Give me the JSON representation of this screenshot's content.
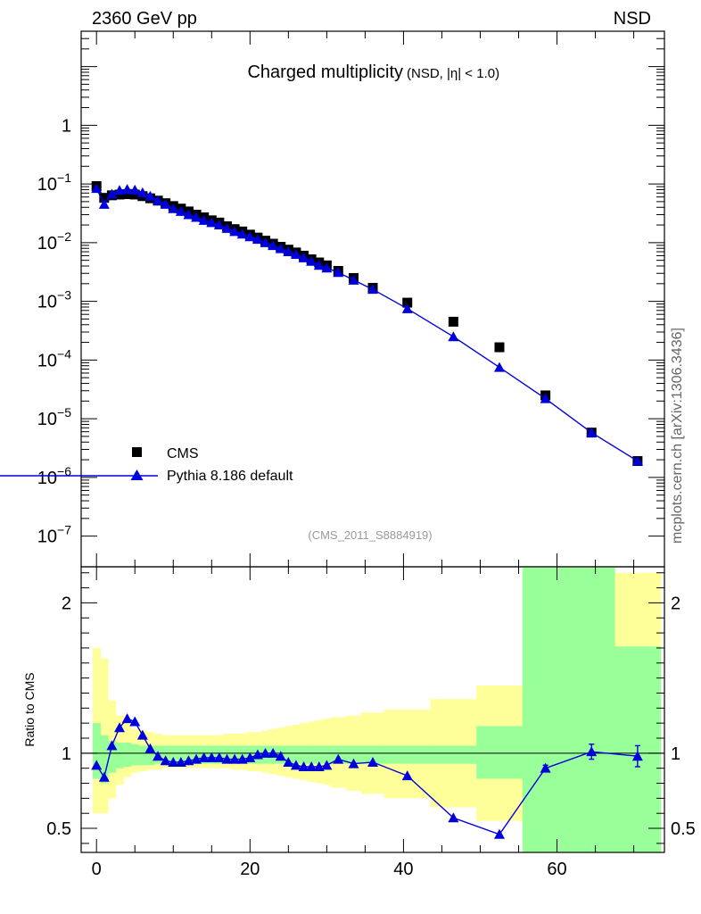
{
  "header": {
    "left": "2360 GeV pp",
    "right": "NSD"
  },
  "watermark": "mcplots.cern.ch [arXiv:1306.3436]",
  "chart_data": [
    {
      "type": "scatter",
      "panel": "main",
      "title": "Charged multiplicity",
      "subtitle": "(NSD, |η| < 1.0)",
      "annotation": "(CMS_2011_S8884919)",
      "xlabel": "",
      "ylabel": "",
      "yscale": "log",
      "xlim": [
        -2,
        74
      ],
      "ylim": [
        3e-08,
        40
      ],
      "y_ticks": [
        {
          "value": 1e-07,
          "base": "10",
          "exp": "−7"
        },
        {
          "value": 1e-06,
          "base": "10",
          "exp": "−6"
        },
        {
          "value": 1e-05,
          "base": "10",
          "exp": "−5"
        },
        {
          "value": 0.0001,
          "base": "10",
          "exp": "−4"
        },
        {
          "value": 0.001,
          "base": "10",
          "exp": "−3"
        },
        {
          "value": 0.01,
          "base": "10",
          "exp": "−2"
        },
        {
          "value": 0.1,
          "base": "10",
          "exp": "−1"
        },
        {
          "value": 1,
          "base": "1",
          "exp": ""
        }
      ],
      "legend_position": "bottom-left",
      "series": [
        {
          "name": "CMS",
          "marker": "square",
          "color": "#000000",
          "x": [
            0,
            1,
            2,
            3,
            4,
            5,
            6,
            7,
            8,
            9,
            10,
            11,
            12,
            13,
            14,
            15,
            16,
            17,
            18,
            19,
            20,
            21,
            22,
            23,
            24,
            25,
            26,
            27,
            28,
            29,
            30,
            31.5,
            33.5,
            36,
            40.5,
            46.5,
            52.5,
            58.5,
            64.5,
            70.5
          ],
          "y": [
            0.092,
            0.058,
            0.064,
            0.066,
            0.067,
            0.066,
            0.062,
            0.057,
            0.052,
            0.047,
            0.042,
            0.038,
            0.034,
            0.03,
            0.027,
            0.024,
            0.022,
            0.019,
            0.017,
            0.0155,
            0.0137,
            0.0122,
            0.0108,
            0.0096,
            0.0085,
            0.0076,
            0.0068,
            0.006,
            0.0052,
            0.0046,
            0.0041,
            0.0033,
            0.0025,
            0.0017,
            0.00095,
            0.00045,
            0.000165,
            2.5e-05,
            5.8e-06,
            1.9e-06
          ]
        },
        {
          "name": "Pythia 8.186 default",
          "marker": "triangle",
          "color": "#0000dd",
          "x": [
            0,
            1,
            2,
            3,
            4,
            5,
            6,
            7,
            8,
            9,
            10,
            11,
            12,
            13,
            14,
            15,
            16,
            17,
            18,
            19,
            20,
            21,
            22,
            23,
            24,
            25,
            26,
            27,
            28,
            29,
            30,
            31.5,
            33.5,
            36,
            40.5,
            46.5,
            52.5,
            58.5,
            64.5,
            70.5
          ],
          "y": [
            0.084,
            0.045,
            0.067,
            0.078,
            0.081,
            0.079,
            0.071,
            0.062,
            0.052,
            0.045,
            0.038,
            0.034,
            0.03,
            0.027,
            0.024,
            0.022,
            0.02,
            0.0175,
            0.0155,
            0.014,
            0.0126,
            0.0114,
            0.01,
            0.0089,
            0.0079,
            0.007,
            0.0063,
            0.0055,
            0.0048,
            0.0041,
            0.0037,
            0.0031,
            0.0023,
            0.0016,
            0.00075,
            0.00025,
            7.5e-05,
            2.2e-05,
            5.8e-06,
            1.9e-06
          ]
        }
      ]
    },
    {
      "type": "line",
      "panel": "ratio",
      "xlabel": "",
      "ylabel": "Ratio to CMS",
      "xlim": [
        -2,
        74
      ],
      "ylim": [
        0.34,
        2.24
      ],
      "x_ticks": [
        0,
        20,
        40,
        60
      ],
      "y_ticks": [
        0.5,
        1,
        2
      ],
      "reference_line": 1,
      "bands": {
        "bin_edges": [
          -0.5,
          0.5,
          1.5,
          2.5,
          3.5,
          4.5,
          5.5,
          6.5,
          7.5,
          8.5,
          9.5,
          10.5,
          11.5,
          12.5,
          13.5,
          14.5,
          15.5,
          16.5,
          17.5,
          18.5,
          19.5,
          20.5,
          21.5,
          22.5,
          23.5,
          24.5,
          25.5,
          26.5,
          27.5,
          28.5,
          29.5,
          30.5,
          32.5,
          34.5,
          37.5,
          43.5,
          49.5,
          55.5,
          61.5,
          67.5,
          73.5
        ],
        "stat_color": "#99ff99",
        "stat": [
          [
            0.83,
            1.2
          ],
          [
            0.8,
            1.12
          ],
          [
            0.87,
            1.08
          ],
          [
            0.9,
            1.07
          ],
          [
            0.91,
            1.07
          ],
          [
            0.92,
            1.06
          ],
          [
            0.92,
            1.05
          ],
          [
            0.92,
            1.05
          ],
          [
            0.93,
            1.05
          ],
          [
            0.93,
            1.05
          ],
          [
            0.93,
            1.05
          ],
          [
            0.93,
            1.05
          ],
          [
            0.93,
            1.05
          ],
          [
            0.93,
            1.05
          ],
          [
            0.93,
            1.05
          ],
          [
            0.93,
            1.05
          ],
          [
            0.93,
            1.05
          ],
          [
            0.93,
            1.05
          ],
          [
            0.93,
            1.05
          ],
          [
            0.93,
            1.05
          ],
          [
            0.93,
            1.05
          ],
          [
            0.93,
            1.05
          ],
          [
            0.93,
            1.05
          ],
          [
            0.93,
            1.05
          ],
          [
            0.93,
            1.05
          ],
          [
            0.93,
            1.05
          ],
          [
            0.93,
            1.05
          ],
          [
            0.93,
            1.05
          ],
          [
            0.93,
            1.05
          ],
          [
            0.93,
            1.05
          ],
          [
            0.93,
            1.05
          ],
          [
            0.93,
            1.05
          ],
          [
            0.93,
            1.05
          ],
          [
            0.93,
            1.05
          ],
          [
            0.93,
            1.05
          ],
          [
            0.93,
            1.05
          ],
          [
            0.83,
            1.18
          ],
          [
            0.34,
            2.24
          ],
          [
            0.34,
            2.24
          ],
          [
            0.34,
            1.71
          ]
        ],
        "syst_color": "#ffff99",
        "syst": [
          [
            0.6,
            1.7
          ],
          [
            0.6,
            1.63
          ],
          [
            0.7,
            1.35
          ],
          [
            0.79,
            1.25
          ],
          [
            0.84,
            1.2
          ],
          [
            0.87,
            1.16
          ],
          [
            0.88,
            1.15
          ],
          [
            0.89,
            1.14
          ],
          [
            0.89,
            1.13
          ],
          [
            0.9,
            1.12
          ],
          [
            0.9,
            1.12
          ],
          [
            0.9,
            1.12
          ],
          [
            0.9,
            1.12
          ],
          [
            0.9,
            1.12
          ],
          [
            0.9,
            1.12
          ],
          [
            0.9,
            1.12
          ],
          [
            0.9,
            1.12
          ],
          [
            0.9,
            1.13
          ],
          [
            0.89,
            1.13
          ],
          [
            0.89,
            1.13
          ],
          [
            0.88,
            1.14
          ],
          [
            0.88,
            1.14
          ],
          [
            0.87,
            1.15
          ],
          [
            0.86,
            1.16
          ],
          [
            0.85,
            1.17
          ],
          [
            0.84,
            1.18
          ],
          [
            0.83,
            1.19
          ],
          [
            0.82,
            1.2
          ],
          [
            0.81,
            1.21
          ],
          [
            0.8,
            1.22
          ],
          [
            0.79,
            1.23
          ],
          [
            0.77,
            1.24
          ],
          [
            0.75,
            1.25
          ],
          [
            0.73,
            1.27
          ],
          [
            0.7,
            1.29
          ],
          [
            0.64,
            1.36
          ],
          [
            0.55,
            1.45
          ],
          [
            0.34,
            2.24
          ],
          [
            0.34,
            2.24
          ],
          [
            0.34,
            2.2
          ]
        ]
      },
      "series": [
        {
          "name": "Pythia 8.186 default",
          "marker": "triangle",
          "color": "#0000dd",
          "x": [
            0,
            1,
            2,
            3,
            4,
            5,
            6,
            7,
            8,
            9,
            10,
            11,
            12,
            13,
            14,
            15,
            16,
            17,
            18,
            19,
            20,
            21,
            22,
            23,
            24,
            25,
            26,
            27,
            28,
            29,
            30,
            31.5,
            33.5,
            36,
            40.5,
            46.5,
            52.5,
            58.5,
            64.5,
            70.5
          ],
          "y": [
            0.92,
            0.84,
            1.05,
            1.17,
            1.23,
            1.21,
            1.12,
            1.03,
            0.98,
            0.95,
            0.94,
            0.94,
            0.95,
            0.96,
            0.97,
            0.97,
            0.97,
            0.96,
            0.96,
            0.96,
            0.97,
            0.99,
            1.0,
            1.0,
            0.98,
            0.94,
            0.92,
            0.91,
            0.91,
            0.91,
            0.92,
            0.96,
            0.93,
            0.94,
            0.85,
            0.57,
            0.46,
            0.9,
            1.01,
            0.98
          ],
          "yerr": [
            0,
            0,
            0,
            0,
            0,
            0,
            0,
            0,
            0,
            0,
            0,
            0,
            0,
            0,
            0,
            0,
            0,
            0,
            0,
            0,
            0,
            0,
            0,
            0,
            0,
            0,
            0,
            0,
            0,
            0,
            0,
            0,
            0,
            0,
            0,
            0,
            0,
            0.02,
            0.05,
            0.07
          ]
        }
      ]
    }
  ]
}
